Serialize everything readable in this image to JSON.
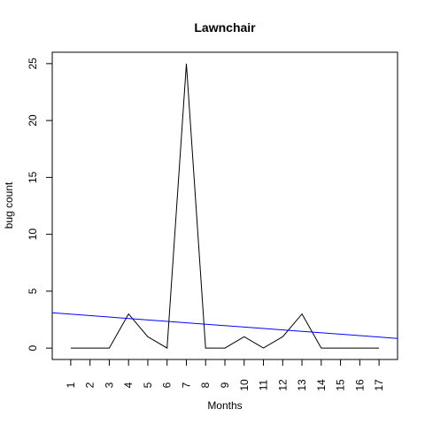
{
  "chart_data": {
    "type": "line",
    "title": "Lawnchair",
    "xlabel": "Months",
    "ylabel": "bug count",
    "x": [
      1,
      2,
      3,
      4,
      5,
      6,
      7,
      8,
      9,
      10,
      11,
      12,
      13,
      14,
      15,
      16,
      17
    ],
    "y_ticks": [
      0,
      5,
      10,
      15,
      20,
      25
    ],
    "xlim": [
      0.04,
      17.96
    ],
    "ylim": [
      -1.0,
      26.0
    ],
    "grid": false,
    "series": [
      {
        "values": [
          0,
          0,
          0,
          3,
          1,
          0,
          25,
          0,
          0,
          1,
          0,
          1,
          3,
          0,
          0,
          0,
          0
        ],
        "color": "#000000"
      }
    ],
    "trend_line": {
      "color": "#0000ff",
      "start": [
        0.04,
        3.1
      ],
      "end": [
        17.96,
        0.85
      ]
    }
  }
}
